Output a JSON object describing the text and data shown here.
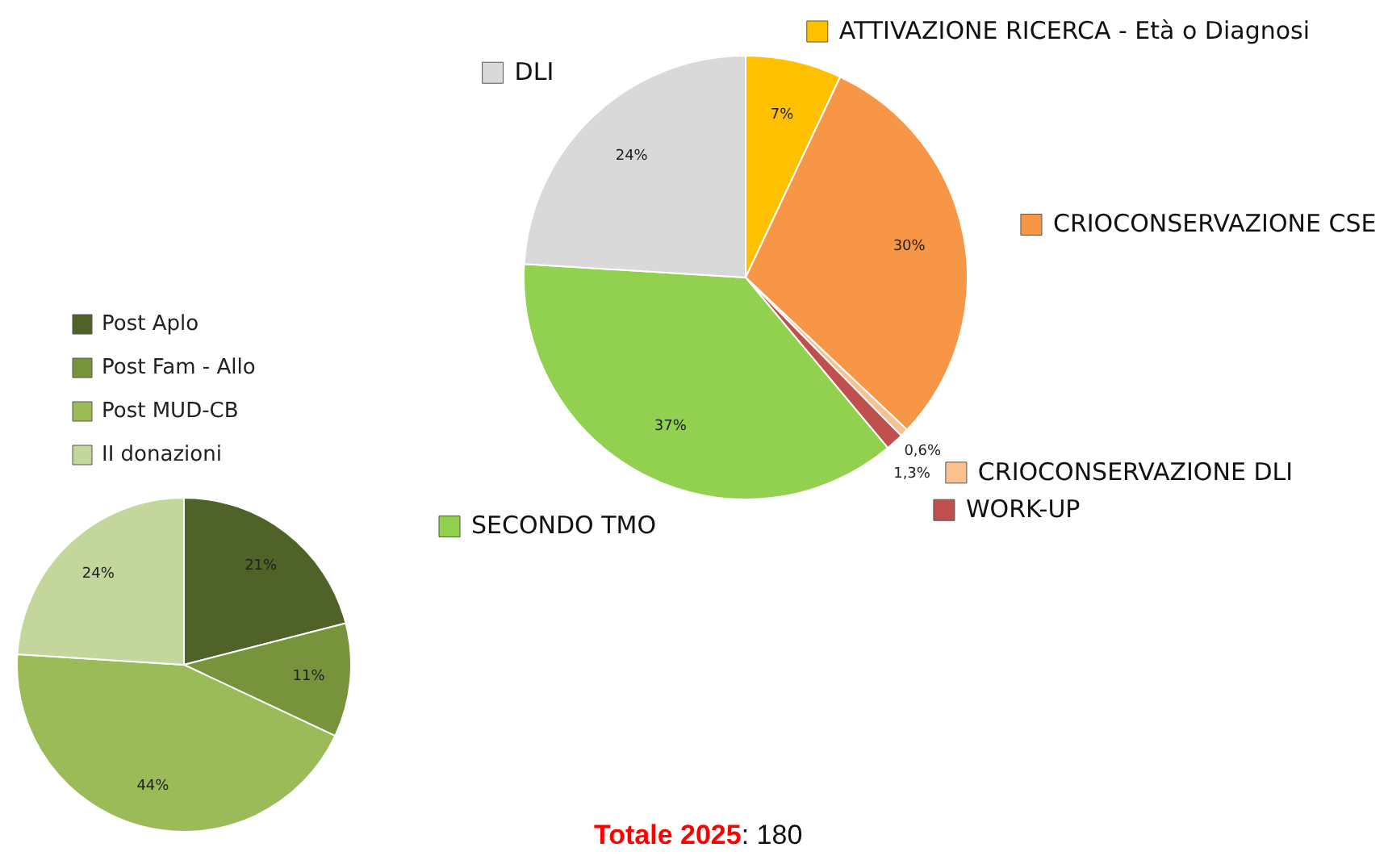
{
  "chart_data": [
    {
      "type": "pie",
      "categories": [
        "ATTIVAZIONE RICERCA - Età o Diagnosi",
        "CRIOCONSERVAZIONE CSE",
        "CRIOCONSERVAZIONE DLI",
        "WORK-UP",
        "SECONDO TMO",
        "DLI"
      ],
      "values": [
        7,
        30,
        0.6,
        1.3,
        37,
        24
      ],
      "value_labels": [
        "7%",
        "30%",
        "0,6%",
        "1,3%",
        "37%",
        "24%"
      ],
      "colors": [
        "#ffc000",
        "#f79646",
        "#fac090",
        "#c0504d",
        "#92d050",
        "#d9d9d9"
      ],
      "legend": "right",
      "annotations": [
        "Totale 2025: 180"
      ]
    },
    {
      "type": "pie",
      "categories": [
        "Post Aplo",
        "Post Fam - Allo",
        "Post MUD-CB",
        "II donazioni"
      ],
      "values": [
        21,
        11,
        44,
        24
      ],
      "value_labels": [
        "21%",
        "11%",
        "44%",
        "24%"
      ],
      "colors": [
        "#4f6228",
        "#77933c",
        "#9bbb59",
        "#c3d69b"
      ],
      "legend": "top left"
    }
  ]
}
